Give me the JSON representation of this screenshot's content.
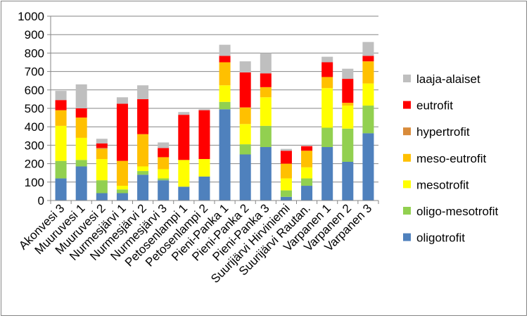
{
  "chart_data": {
    "type": "bar",
    "stacked": true,
    "ylim": [
      0,
      1000
    ],
    "yticks": [
      "0",
      "100",
      "200",
      "300",
      "400",
      "500",
      "600",
      "700",
      "800",
      "900",
      "1000"
    ],
    "ytick_values": [
      0,
      100,
      200,
      300,
      400,
      500,
      600,
      700,
      800,
      900,
      1000
    ],
    "grid": "horizontal",
    "legend_position": "right",
    "categories": [
      "Akonvesi 3",
      "Muuruvesi 1",
      "Muuruvesi 2",
      "Nurmesjärvi 1",
      "Nurmesjärvi 2",
      "Nurmesjärvi 3",
      "Petosenlampi 1",
      "Petosenlampi 2",
      "Pieni-Panka 1",
      "Pieni-Panka 2",
      "Pieni-Panka 3",
      "Suurijärvi Hirviniemi",
      "Suurijärvi Rautan.",
      "Varpanen 1",
      "Varpanen 2",
      "Varpanen 3"
    ],
    "series": [
      {
        "name": "oligotrofit",
        "color": "#4F81BD",
        "values": [
          120,
          185,
          40,
          40,
          140,
          110,
          75,
          130,
          495,
          250,
          290,
          20,
          80,
          290,
          210,
          365
        ]
      },
      {
        "name": "oligo-mesotrofit",
        "color": "#92D050",
        "values": [
          95,
          35,
          70,
          20,
          20,
          10,
          0,
          0,
          40,
          55,
          115,
          35,
          40,
          105,
          180,
          150
        ]
      },
      {
        "name": "mesotrofit",
        "color": "#FFFF00",
        "values": [
          190,
          120,
          115,
          20,
          25,
          50,
          145,
          95,
          90,
          110,
          155,
          65,
          60,
          215,
          125,
          120
        ]
      },
      {
        "name": "meso-eutrofit",
        "color": "#FFC000",
        "values": [
          85,
          110,
          55,
          135,
          175,
          65,
          0,
          0,
          125,
          90,
          55,
          80,
          90,
          60,
          15,
          120
        ]
      },
      {
        "name": "hypertrofit",
        "color": "#D98B3A",
        "values": [
          0,
          0,
          5,
          0,
          0,
          0,
          0,
          0,
          0,
          0,
          0,
          0,
          0,
          0,
          0,
          0
        ]
      },
      {
        "name": "eutrofit",
        "color": "#FF0000",
        "values": [
          55,
          50,
          25,
          310,
          190,
          50,
          245,
          265,
          35,
          190,
          75,
          70,
          25,
          80,
          130,
          30
        ]
      },
      {
        "name": "laaja-alaiset",
        "color": "#BFBFBF",
        "values": [
          50,
          130,
          25,
          35,
          75,
          30,
          15,
          5,
          60,
          60,
          110,
          10,
          0,
          30,
          55,
          75
        ]
      }
    ]
  }
}
